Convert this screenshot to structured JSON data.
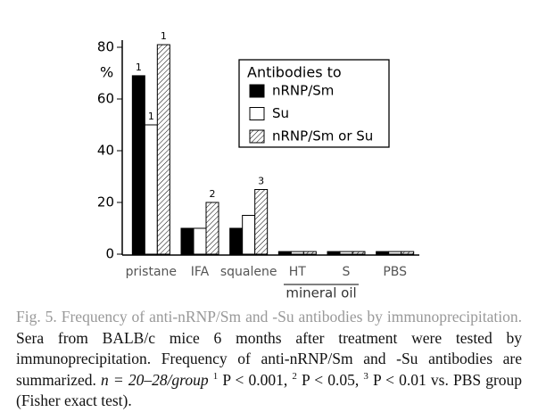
{
  "chart_data": {
    "type": "bar",
    "y_label": "%",
    "categories": [
      "pristane",
      "IFA",
      "squalene",
      "HT",
      "S",
      "PBS"
    ],
    "group_label": "mineral oil",
    "legend_title": "Antibodies to",
    "series": [
      {
        "name": "nRNP/Sm",
        "color": "#000000",
        "hatch": false,
        "values": [
          69,
          10,
          10,
          1,
          1,
          1
        ],
        "significance": [
          "1",
          null,
          null,
          null,
          null,
          null
        ]
      },
      {
        "name": "Su",
        "color": "#ffffff",
        "hatch": false,
        "values": [
          50,
          10,
          15,
          1,
          1,
          1
        ],
        "significance": [
          "1",
          null,
          null,
          null,
          null,
          null
        ]
      },
      {
        "name": "nRNP/Sm or Su",
        "color": "#ffffff",
        "hatch": true,
        "values": [
          81,
          20,
          25,
          1,
          1,
          1
        ],
        "significance": [
          "1",
          "2",
          "3",
          null,
          null,
          null
        ]
      }
    ],
    "ylim": [
      0,
      80
    ],
    "yticks": [
      0,
      20,
      40,
      60,
      80
    ],
    "grid": false
  },
  "caption": {
    "label": "Fig. 5.",
    "title": "Frequency of anti-nRNP/Sm and -Su antibodies by immunoprecipitation.",
    "body": "Sera from BALB/c mice 6 months after treatment were tested by immunoprecipitation. Frequency of anti-nRNP/Sm and -Su antibodies are summarized.",
    "n": "n = 20–28/group",
    "footnotes": [
      {
        "mark": "1",
        "text": "P < 0.001,"
      },
      {
        "mark": "2",
        "text": "P < 0.05,"
      },
      {
        "mark": "3",
        "text": "P < 0.01 vs. PBS group (Fisher exact test)."
      }
    ]
  }
}
